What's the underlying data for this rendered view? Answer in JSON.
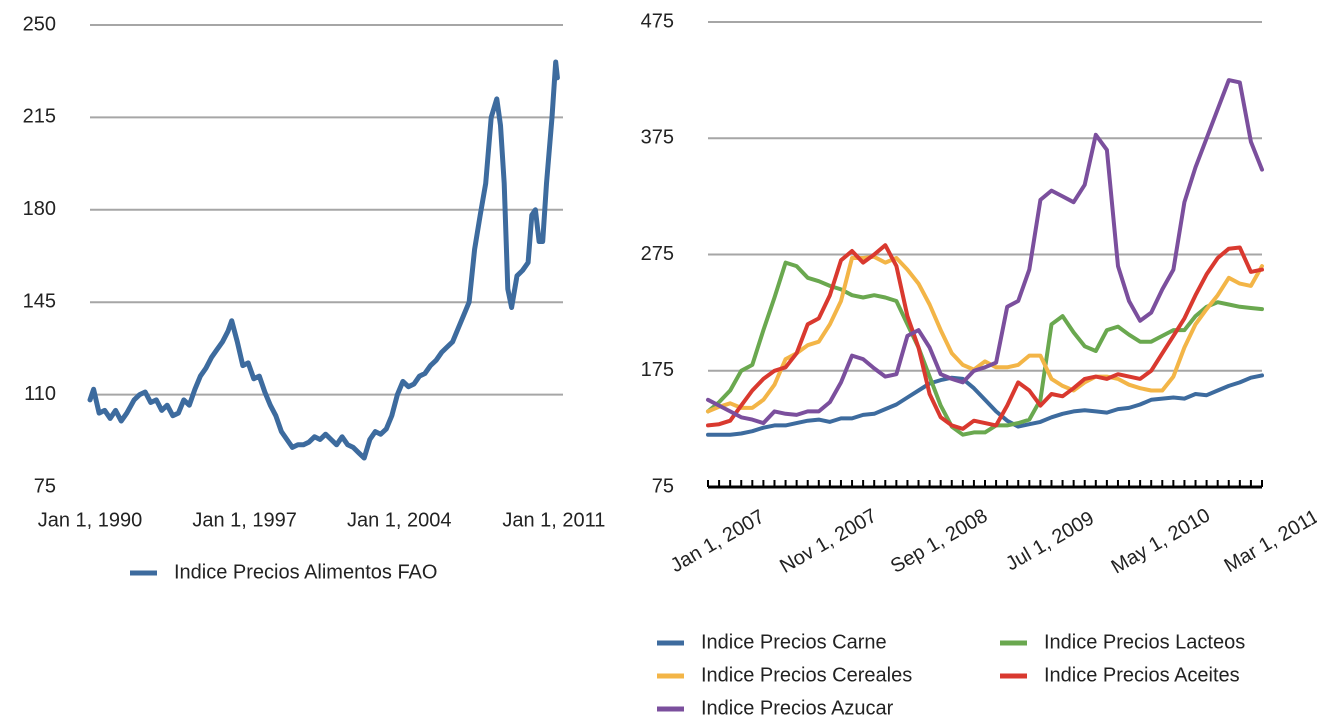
{
  "chart_data": [
    {
      "type": "line",
      "x": [
        "1990-01-01",
        "1990-03-01",
        "1990-06-01",
        "1990-09-01",
        "1990-12-01",
        "1991-03-01",
        "1991-06-01",
        "1991-09-01",
        "1992-01-01",
        "1992-04-01",
        "1992-07-01",
        "1992-10-01",
        "1993-01-01",
        "1993-04-01",
        "1993-07-01",
        "1993-10-01",
        "1994-01-01",
        "1994-04-01",
        "1994-07-01",
        "1994-10-01",
        "1995-01-01",
        "1995-04-01",
        "1995-07-01",
        "1995-10-01",
        "1996-01-01",
        "1996-04-01",
        "1996-06-01",
        "1996-09-01",
        "1996-12-01",
        "1997-03-01",
        "1997-06-01",
        "1997-09-01",
        "1997-12-01",
        "1998-03-01",
        "1998-06-01",
        "1998-09-01",
        "1998-12-01",
        "1999-03-01",
        "1999-06-01",
        "1999-09-01",
        "1999-12-01",
        "2000-03-01",
        "2000-06-01",
        "2000-09-01",
        "2000-12-01",
        "2001-03-01",
        "2001-06-01",
        "2001-09-01",
        "2001-12-01",
        "2002-03-01",
        "2002-06-01",
        "2002-09-01",
        "2002-12-01",
        "2003-03-01",
        "2003-06-01",
        "2003-09-01",
        "2003-12-01",
        "2004-03-01",
        "2004-06-01",
        "2004-09-01",
        "2004-12-01",
        "2005-03-01",
        "2005-06-01",
        "2005-09-01",
        "2005-12-01",
        "2006-03-01",
        "2006-06-01",
        "2006-09-01",
        "2006-12-01",
        "2007-03-01",
        "2007-06-01",
        "2007-09-01",
        "2007-12-01",
        "2008-03-01",
        "2008-06-01",
        "2008-08-01",
        "2008-10-01",
        "2008-12-01",
        "2009-02-01",
        "2009-05-01",
        "2009-08-01",
        "2009-11-01",
        "2010-01-01",
        "2010-03-01",
        "2010-05-01",
        "2010-07-01",
        "2010-09-01",
        "2010-12-01",
        "2011-02-01",
        "2011-03-01"
      ],
      "series": [
        {
          "name": "Indice Precios Alimentos FAO",
          "color": "#3d6b9e",
          "values": [
            108,
            112,
            103,
            104,
            101,
            104,
            100,
            103,
            108,
            110,
            111,
            107,
            108,
            104,
            106,
            102,
            103,
            108,
            106,
            112,
            117,
            120,
            124,
            127,
            130,
            134,
            138,
            130,
            121,
            122,
            116,
            117,
            111,
            106,
            102,
            96,
            93,
            90,
            91,
            91,
            92,
            94,
            93,
            95,
            93,
            91,
            94,
            91,
            90,
            88,
            86,
            93,
            96,
            95,
            97,
            102,
            110,
            115,
            113,
            114,
            117,
            118,
            121,
            123,
            126,
            128,
            130,
            135,
            140,
            145,
            165,
            178,
            190,
            215,
            222,
            212,
            190,
            150,
            143,
            155,
            157,
            160,
            178,
            180,
            168,
            168,
            190,
            215,
            236,
            230
          ]
        }
      ],
      "xlim": [
        "1990-01-01",
        "2011-06-01"
      ],
      "xticks": [
        {
          "value": "1990-01-01",
          "label": "Jan 1, 1990"
        },
        {
          "value": "1997-01-01",
          "label": "Jan 1, 1997"
        },
        {
          "value": "2004-01-01",
          "label": "Jan 1, 2004"
        },
        {
          "value": "2011-01-01",
          "label": "Jan 1, 2011"
        }
      ],
      "ylim": [
        75,
        250
      ],
      "yticks": [
        75,
        110,
        145,
        180,
        215,
        250
      ],
      "grid": true,
      "legend": "bottom"
    },
    {
      "type": "line",
      "categories": [
        "Jan 1, 2007",
        null,
        null,
        null,
        null,
        null,
        null,
        null,
        null,
        null,
        "Nov 1, 2007",
        null,
        null,
        null,
        null,
        null,
        null,
        null,
        null,
        null,
        "Sep 1, 2008",
        null,
        null,
        null,
        null,
        null,
        null,
        null,
        null,
        null,
        "Jul 1, 2009",
        null,
        null,
        null,
        null,
        null,
        null,
        null,
        null,
        null,
        "May 1, 2010",
        null,
        null,
        null,
        null,
        null,
        null,
        null,
        null,
        null,
        "Mar 1, 2011"
      ],
      "series": [
        {
          "name": "Indice Precios Carne",
          "color": "#3d6b9e",
          "values": [
            120,
            120,
            120,
            121,
            123,
            126,
            128,
            128,
            130,
            132,
            133,
            131,
            134,
            134,
            137,
            138,
            142,
            146,
            152,
            158,
            164,
            167,
            169,
            168,
            160,
            150,
            140,
            132,
            127,
            129,
            131,
            135,
            138,
            140,
            141,
            140,
            139,
            142,
            143,
            146,
            150,
            151,
            152,
            151,
            155,
            154,
            158,
            162,
            165,
            169,
            171
          ]
        },
        {
          "name": "Indice Precios Lacteos",
          "color": "#6aa84f",
          "values": [
            140,
            148,
            158,
            175,
            180,
            210,
            238,
            268,
            265,
            255,
            252,
            248,
            245,
            240,
            238,
            240,
            238,
            235,
            215,
            195,
            170,
            145,
            127,
            120,
            122,
            122,
            128,
            128,
            130,
            133,
            150,
            215,
            222,
            208,
            196,
            192,
            210,
            213,
            206,
            200,
            200,
            205,
            210,
            210,
            222,
            230,
            234,
            232,
            230,
            229,
            228
          ]
        },
        {
          "name": "Indice Precios Cereales",
          "color": "#f3b547",
          "values": [
            140,
            144,
            147,
            143,
            143,
            150,
            163,
            185,
            190,
            197,
            200,
            215,
            235,
            272,
            272,
            273,
            268,
            272,
            262,
            250,
            232,
            210,
            190,
            180,
            176,
            183,
            178,
            178,
            180,
            188,
            188,
            168,
            162,
            158,
            165,
            170,
            170,
            168,
            163,
            160,
            158,
            158,
            170,
            195,
            215,
            228,
            240,
            255,
            250,
            248,
            265
          ]
        },
        {
          "name": "Indice Precios Aceites",
          "color": "#d9392f",
          "values": [
            128,
            129,
            132,
            145,
            158,
            168,
            175,
            178,
            190,
            215,
            220,
            240,
            270,
            278,
            268,
            275,
            283,
            265,
            222,
            195,
            155,
            135,
            128,
            125,
            132,
            130,
            128,
            145,
            165,
            158,
            145,
            155,
            153,
            160,
            168,
            170,
            168,
            172,
            170,
            168,
            175,
            190,
            205,
            220,
            240,
            258,
            272,
            280,
            281,
            260,
            262
          ]
        },
        {
          "name": "Indice Precios Azucar",
          "color": "#7b4f9d",
          "values": [
            150,
            145,
            140,
            135,
            133,
            130,
            140,
            138,
            137,
            140,
            140,
            148,
            165,
            188,
            185,
            177,
            170,
            172,
            205,
            210,
            195,
            172,
            168,
            165,
            175,
            178,
            182,
            230,
            235,
            262,
            322,
            330,
            325,
            320,
            335,
            378,
            365,
            265,
            235,
            218,
            225,
            245,
            262,
            320,
            350,
            375,
            400,
            425,
            423,
            372,
            348
          ]
        }
      ],
      "ylim": [
        75,
        475
      ],
      "yticks": [
        75,
        175,
        275,
        375,
        475
      ],
      "grid": true,
      "legend": "bottom"
    }
  ]
}
